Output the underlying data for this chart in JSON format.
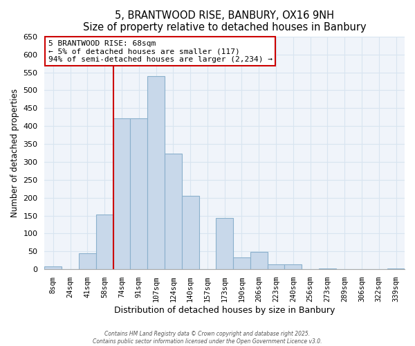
{
  "title": "5, BRANTWOOD RISE, BANBURY, OX16 9NH",
  "subtitle": "Size of property relative to detached houses in Banbury",
  "xlabel": "Distribution of detached houses by size in Banbury",
  "ylabel": "Number of detached properties",
  "bar_labels": [
    "8sqm",
    "24sqm",
    "41sqm",
    "58sqm",
    "74sqm",
    "91sqm",
    "107sqm",
    "124sqm",
    "140sqm",
    "157sqm",
    "173sqm",
    "190sqm",
    "206sqm",
    "223sqm",
    "240sqm",
    "256sqm",
    "273sqm",
    "289sqm",
    "306sqm",
    "322sqm",
    "339sqm"
  ],
  "bar_values": [
    8,
    0,
    44,
    154,
    422,
    422,
    540,
    323,
    205,
    0,
    143,
    33,
    49,
    14,
    13,
    0,
    3,
    0,
    0,
    0,
    2
  ],
  "bar_color": "#c8d8ea",
  "bar_edge_color": "#8ab0cc",
  "grid_color": "#d8e4f0",
  "property_line_color": "#cc0000",
  "property_line_bar_idx": 4,
  "annotation_text": "5 BRANTWOOD RISE: 68sqm\n← 5% of detached houses are smaller (117)\n94% of semi-detached houses are larger (2,234) →",
  "annotation_box_facecolor": "#ffffff",
  "annotation_box_edgecolor": "#cc0000",
  "ylim": [
    0,
    650
  ],
  "yticks": [
    0,
    50,
    100,
    150,
    200,
    250,
    300,
    350,
    400,
    450,
    500,
    550,
    600,
    650
  ],
  "footer_line1": "Contains HM Land Registry data © Crown copyright and database right 2025.",
  "footer_line2": "Contains public sector information licensed under the Open Government Licence v3.0.",
  "background_color": "#ffffff",
  "plot_bg_color": "#f0f4fa"
}
